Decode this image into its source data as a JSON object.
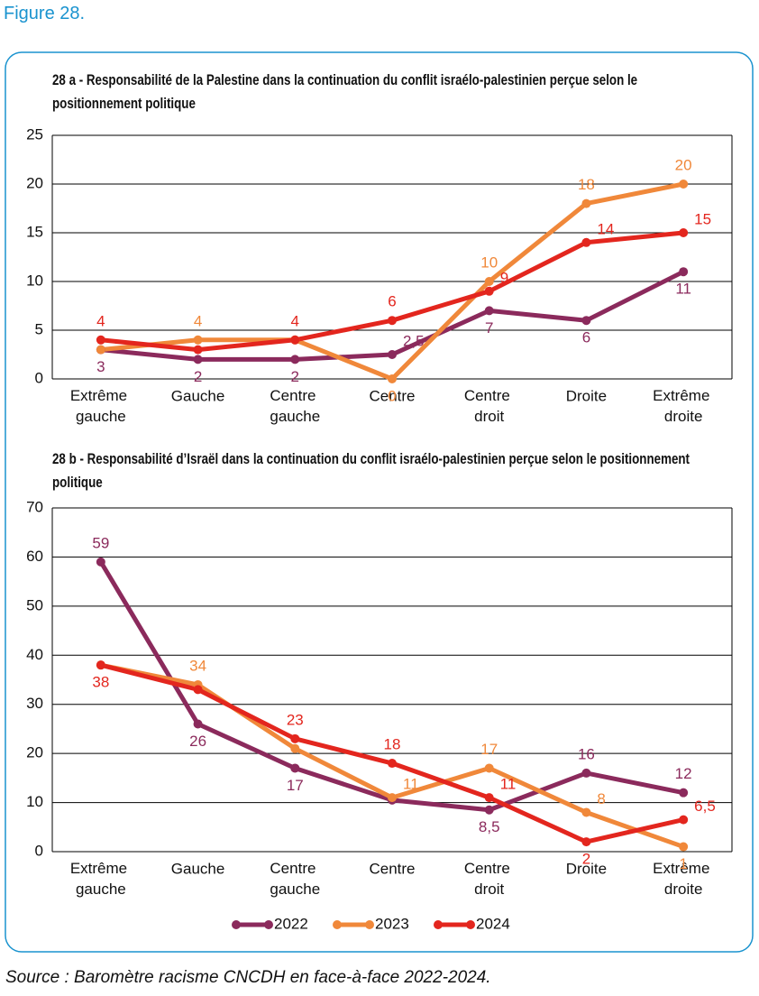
{
  "figure_label": "Figure 28.",
  "source": "Source : Baromètre racisme CNCDH en face-à-face 2022-2024.",
  "chart_data": [
    {
      "type": "line",
      "title": "28 a - Responsabilité de la Palestine dans la continuation du conflit israélo-palestinien perçue selon le positionnement politique",
      "categories": [
        "Extrême gauche",
        "Gauche",
        "Centre gauche",
        "Centre",
        "Centre droit",
        "Droite",
        "Extrême droite"
      ],
      "series": [
        {
          "color": "#8b2a5c",
          "values": [
            3,
            2,
            2,
            2.5,
            7,
            6,
            11
          ],
          "value_labels": [
            "3",
            "2",
            "2",
            "2,5",
            "7",
            "6",
            "11"
          ]
        },
        {
          "color": "#f0883a",
          "values": [
            3,
            4,
            4,
            0,
            10,
            18,
            20
          ],
          "value_labels": [
            null,
            "4",
            null,
            "0",
            "10",
            "18",
            "20"
          ]
        },
        {
          "color": "#e3261e",
          "values": [
            4,
            3,
            4,
            6,
            9,
            14,
            15
          ],
          "value_labels": [
            "4",
            null,
            "4",
            "6",
            "9",
            "14",
            "15"
          ]
        }
      ],
      "ylim": [
        0,
        25
      ],
      "yticks": [
        0,
        5,
        10,
        15,
        20,
        25
      ],
      "grid": true
    },
    {
      "type": "line",
      "title": "28 b - Responsabilité d’Israël dans la continuation du conflit israélo-palestinien perçue selon le positionnement politique",
      "categories": [
        "Extrême gauche",
        "Gauche",
        "Centre gauche",
        "Centre",
        "Centre droit",
        "Droite",
        "Extrême droite"
      ],
      "series": [
        {
          "name": "2022",
          "color": "#8b2a5c",
          "values": [
            59,
            26,
            17,
            10.5,
            8.5,
            16,
            12
          ],
          "value_labels": [
            "59",
            "26",
            "17",
            null,
            "8,5",
            "16",
            "12"
          ]
        },
        {
          "name": "2023",
          "color": "#f0883a",
          "values": [
            38,
            34,
            21,
            11,
            17,
            8,
            1
          ],
          "value_labels": [
            null,
            "34",
            null,
            "11",
            "17",
            "8",
            "1"
          ]
        },
        {
          "name": "2024",
          "color": "#e3261e",
          "values": [
            38,
            33,
            23,
            18,
            11,
            2,
            6.5
          ],
          "value_labels": [
            "38",
            null,
            "23",
            "18",
            "11",
            "2",
            "6,5"
          ]
        }
      ],
      "ylim": [
        0,
        70
      ],
      "yticks": [
        0,
        10,
        20,
        30,
        40,
        50,
        60,
        70
      ],
      "grid": true,
      "legend": "bottom"
    }
  ]
}
